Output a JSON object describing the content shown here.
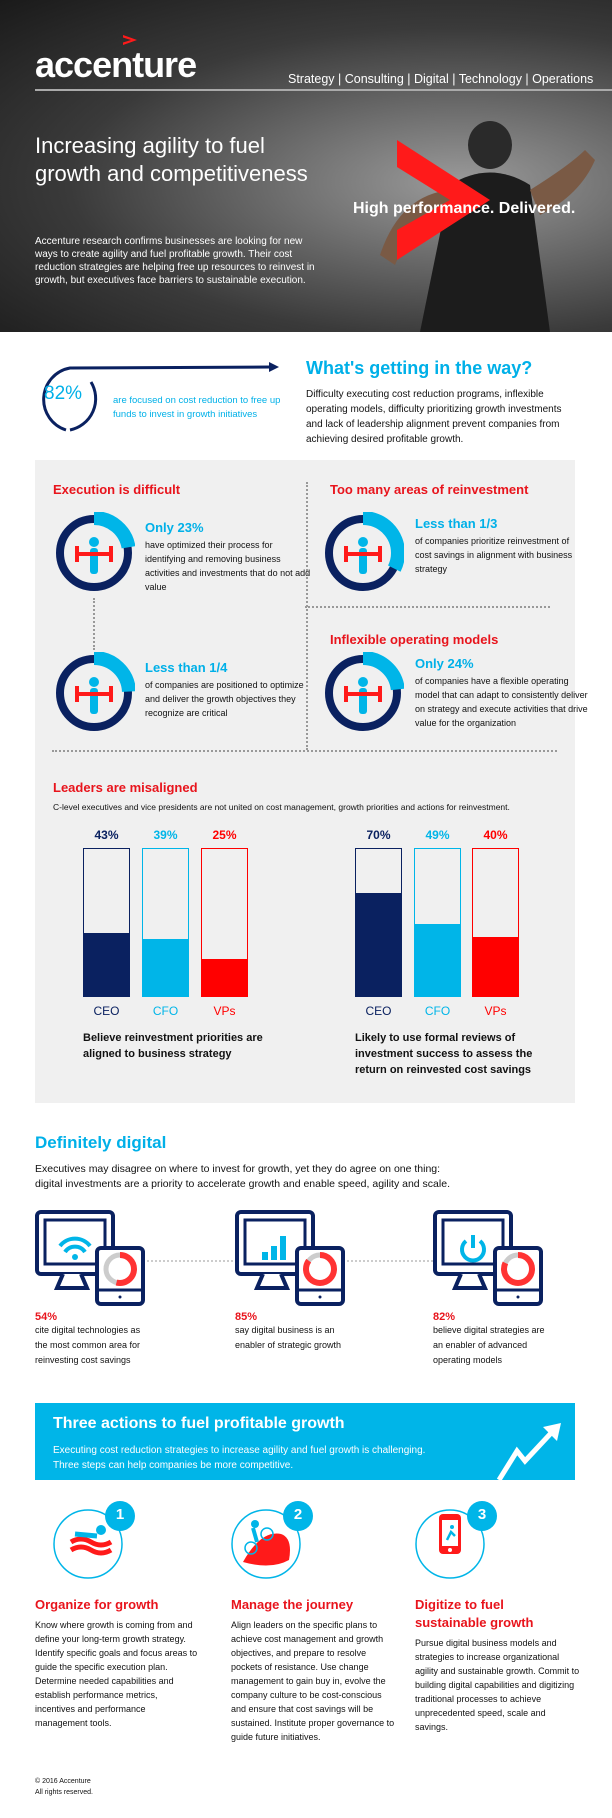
{
  "header": {
    "logo": "accenture",
    "tagline": "Strategy | Consulting | Digital | Technology | Operations",
    "headline": "Increasing agility to fuel growth and competitiveness",
    "intro": "Accenture research confirms businesses are looking for new ways to create agility and fuel profitable growth. Their cost reduction strategies are helping free up resources to reinvest in growth, but executives face barriers to sustainable execution.",
    "slogan": "High performance. Delivered."
  },
  "focus": {
    "stat": "82%",
    "text": "are focused on cost reduction to free up funds to invest in growth initiatives"
  },
  "barriers": {
    "title": "What's getting in the way?",
    "text": "Difficulty executing cost reduction programs, inflexible operating models, difficulty prioritizing growth investments and lack of leadership alignment prevent companies from achieving desired profitable growth."
  },
  "execution": {
    "title": "Execution is difficult",
    "items": [
      {
        "stat": "Only 23%",
        "text": "have optimized their process for identifying and removing business activities and investments that do not add value",
        "fraction": 0.23
      },
      {
        "stat": "Less than 1/4",
        "text": "of companies are positioned to optimize and deliver the growth objectives they recognize are critical",
        "fraction": 0.25
      }
    ]
  },
  "reinvestment": {
    "title": "Too many areas of reinvestment",
    "stat": "Less than 1/3",
    "text": "of companies prioritize reinvestment of cost savings in alignment with business strategy",
    "fraction": 0.333
  },
  "operating": {
    "title": "Inflexible operating models",
    "stat": "Only 24%",
    "text": "of companies have a flexible operating model that can adapt to consistently deliver on strategy and execute activities that drive value for the organization",
    "fraction": 0.24
  },
  "leaders": {
    "title": "Leaders are misaligned",
    "subtitle": "C-level executives and vice presidents are not united on cost management, growth priorities and actions for reinvestment."
  },
  "chart_data": [
    {
      "type": "bar",
      "categories": [
        "CEO",
        "CFO",
        "VPs"
      ],
      "values": [
        43,
        39,
        25
      ],
      "value_labels": [
        "43%",
        "39%",
        "25%"
      ],
      "ylim": [
        0,
        100
      ],
      "colors": [
        "#0a2160",
        "#00b5e8",
        "#ff0000"
      ],
      "caption": "Believe reinvestment priorities are aligned to business strategy"
    },
    {
      "type": "bar",
      "categories": [
        "CEO",
        "CFO",
        "VPs"
      ],
      "values": [
        70,
        49,
        40
      ],
      "value_labels": [
        "70%",
        "49%",
        "40%"
      ],
      "ylim": [
        0,
        100
      ],
      "colors": [
        "#0a2160",
        "#00b5e8",
        "#ff0000"
      ],
      "caption": "Likely to use formal reviews of investment success to assess the return on reinvested cost savings"
    }
  ],
  "digital": {
    "title": "Definitely digital",
    "text": "Executives may disagree on where to invest for growth, yet they do agree on one thing: digital investments are a priority to accelerate growth and enable speed, agility and scale.",
    "items": [
      {
        "icon": "wifi-icon",
        "stat": "54%",
        "value": 54,
        "text": "cite digital technologies as the most common area for reinvesting cost savings"
      },
      {
        "icon": "bar-chart-icon",
        "stat": "85%",
        "value": 85,
        "text": "say digital business is an enabler of strategic growth"
      },
      {
        "icon": "power-icon",
        "stat": "82%",
        "value": 82,
        "text": "believe digital strategies are an enabler of advanced operating models"
      }
    ]
  },
  "actions": {
    "title": "Three actions to fuel profitable growth",
    "text": "Executing cost reduction strategies to increase agility and fuel growth is challenging. Three steps can help companies be more competitive.",
    "items": [
      {
        "num": "1",
        "icon": "swimmer-icon",
        "title": "Organize for growth",
        "text": "Know where growth is coming from and define your long-term growth strategy. Identify specific goals and focus areas to guide the specific execution plan. Determine needed capabilities and establish performance metrics, incentives and performance management tools."
      },
      {
        "num": "2",
        "icon": "cyclist-icon",
        "title": "Manage the journey",
        "text": "Align leaders on the specific plans to achieve cost management and growth objectives, and prepare to resolve pockets of resistance. Use change management to gain buy in, evolve the company culture to be cost-conscious and ensure that cost savings will be sustained. Institute proper governance to guide future initiatives."
      },
      {
        "num": "3",
        "icon": "smartphone-runner-icon",
        "title": "Digitize to fuel sustainable growth",
        "text": "Pursue digital business models and strategies to increase organizational agility and sustainable growth. Commit to building digital capabilities and digitizing traditional processes to achieve unprecedented speed, scale and savings."
      }
    ]
  },
  "footer": {
    "copyright": "© 2016 Accenture",
    "rights": "All rights reserved."
  },
  "colors": {
    "navy": "#0a2160",
    "cyan": "#00b5e8",
    "red": "#e8141c",
    "panel": "#f0f0f0"
  }
}
